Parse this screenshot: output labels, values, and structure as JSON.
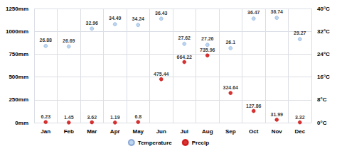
{
  "chart_data": {
    "type": "scatter",
    "categories": [
      "Jan",
      "Feb",
      "Mar",
      "Apr",
      "May",
      "Jun",
      "Jul",
      "Aug",
      "Sep",
      "Oct",
      "Nov",
      "Dec"
    ],
    "series": [
      {
        "name": "Temperature",
        "color": "#aaccee",
        "axis": "y2",
        "values": [
          26.88,
          26.69,
          32.96,
          34.49,
          34.24,
          36.43,
          27.62,
          27.26,
          26.1,
          36.47,
          36.74,
          29.27
        ]
      },
      {
        "name": "Precip",
        "color": "#cc0000",
        "values": [
          6.23,
          1.45,
          3.62,
          1.19,
          6.8,
          475.44,
          664.22,
          735.96,
          324.64,
          127.86,
          31.99,
          3.32
        ]
      }
    ],
    "ylim": [
      0,
      1250
    ],
    "yticks": [
      {
        "value": 0,
        "label": "0mm"
      },
      {
        "value": 250,
        "label": "250mm"
      },
      {
        "value": 500,
        "label": "500mm"
      },
      {
        "value": 750,
        "label": "750mm"
      },
      {
        "value": 1000,
        "label": "1000mm"
      },
      {
        "value": 1250,
        "label": "1250mm"
      }
    ],
    "y2lim": [
      0,
      40
    ],
    "y2ticks": [
      {
        "value": 0,
        "label": "0°C"
      },
      {
        "value": 8,
        "label": "8°C"
      },
      {
        "value": 16,
        "label": "16°C"
      },
      {
        "value": 24,
        "label": "24°C"
      },
      {
        "value": 32,
        "label": "32°C"
      },
      {
        "value": 40,
        "label": "40°C"
      }
    ],
    "grid": true,
    "legend": "bottom",
    "data_labels": true
  }
}
